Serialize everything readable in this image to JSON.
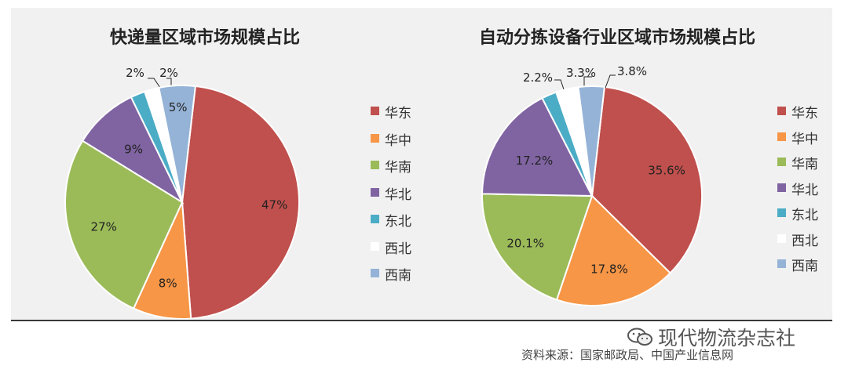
{
  "chart_data": [
    {
      "type": "pie",
      "title": "快递量区域市场规模占比",
      "categories": [
        "华东",
        "华中",
        "华南",
        "华北",
        "东北",
        "西北",
        "西南"
      ],
      "values": [
        47,
        8,
        27,
        9,
        2,
        2,
        5
      ],
      "labels": [
        "47%",
        "8%",
        "27%",
        "9%",
        "2%",
        "2%",
        "5%"
      ],
      "colors": [
        "#c0504d",
        "#f79646",
        "#9bbb59",
        "#8064a2",
        "#4bacc6",
        "#ffffff",
        "#95b3d7"
      ],
      "legend_position": "right"
    },
    {
      "type": "pie",
      "title": "自动分拣设备行业区域市场规模占比",
      "categories": [
        "华东",
        "华中",
        "华南",
        "华北",
        "东北",
        "西北",
        "西南"
      ],
      "values": [
        35.6,
        17.8,
        20.1,
        17.2,
        2.2,
        3.3,
        3.8
      ],
      "labels": [
        "35.6%",
        "17.8%",
        "20.1%",
        "17.2%",
        "2.2%",
        "3.3%",
        "3.8%"
      ],
      "colors": [
        "#c0504d",
        "#f79646",
        "#9bbb59",
        "#8064a2",
        "#4bacc6",
        "#ffffff",
        "#95b3d7"
      ],
      "legend_position": "right"
    }
  ],
  "legend": [
    "华东",
    "华中",
    "华南",
    "华北",
    "东北",
    "西北",
    "西南"
  ],
  "watermark": "现代物流杂志社",
  "watermark_icon": "wechat-icon",
  "source": "资料来源：国家邮政局、中国产业信息网"
}
